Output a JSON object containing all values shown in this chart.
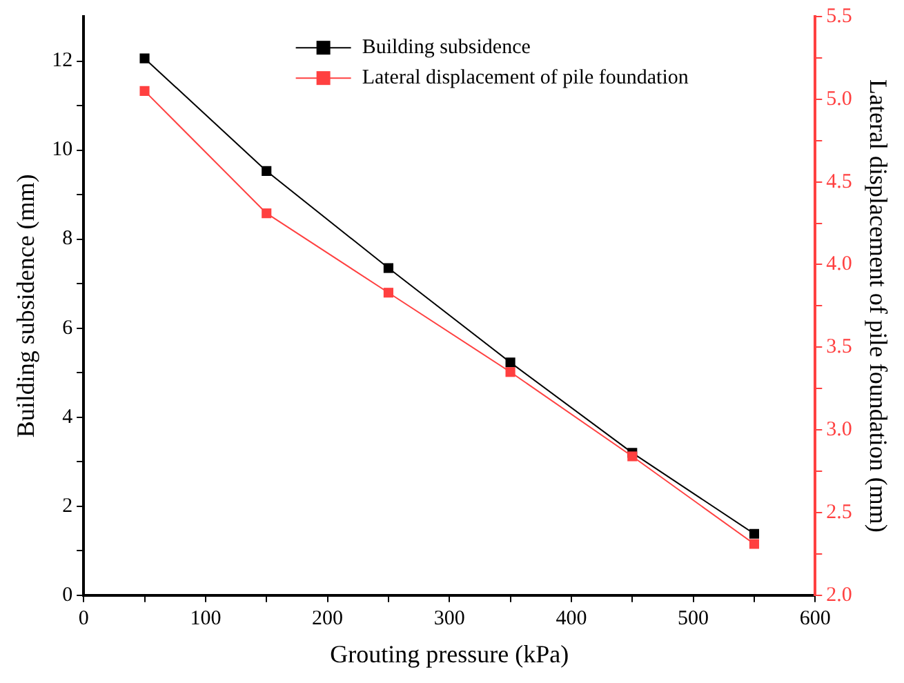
{
  "chart_data": {
    "type": "line",
    "xlabel": "Grouting pressure (kPa)",
    "ylabel": "Building subsidence (mm)",
    "y2label": "Lateral displacement of pile foundation (mm)",
    "x": [
      50,
      150,
      250,
      350,
      450,
      550
    ],
    "series": [
      {
        "name": "Building subsidence",
        "color": "#000000",
        "values": [
          12.06,
          9.53,
          7.35,
          5.23,
          3.2,
          1.38
        ]
      },
      {
        "name": "Lateral displacement of pile foundation",
        "color": "#ff4040",
        "axis": "y2",
        "values": [
          5.05,
          4.31,
          3.83,
          3.35,
          2.84,
          2.31
        ]
      }
    ],
    "xlim": [
      0,
      600
    ],
    "xticks": [
      0,
      {
        "value": 50,
        "label": null
      },
      100,
      {
        "value": 150,
        "label": null
      },
      200,
      {
        "value": 250,
        "label": null
      },
      300,
      {
        "value": 350,
        "label": null
      },
      400,
      {
        "value": 450,
        "label": null
      },
      500,
      {
        "value": 550,
        "label": null
      },
      600
    ],
    "ylim": [
      0,
      13
    ],
    "yticks": [
      0,
      {
        "value": 1,
        "label": null
      },
      2,
      {
        "value": 3,
        "label": null
      },
      4,
      {
        "value": 5,
        "label": null
      },
      6,
      {
        "value": 7,
        "label": null
      },
      8,
      {
        "value": 9,
        "label": null
      },
      10,
      {
        "value": 11,
        "label": null
      },
      12
    ],
    "y2lim": [
      2,
      5.5
    ],
    "y2ticks": [
      {
        "value": 2,
        "label": "2.0"
      },
      {
        "value": 2.25,
        "label": null
      },
      2.5,
      {
        "value": 2.75,
        "label": null
      },
      {
        "value": 3,
        "label": "3.0"
      },
      {
        "value": 3.25,
        "label": null
      },
      3.5,
      {
        "value": 3.75,
        "label": null
      },
      {
        "value": 4,
        "label": "4.0"
      },
      {
        "value": 4.25,
        "label": null
      },
      4.5,
      {
        "value": 4.75,
        "label": null
      },
      {
        "value": 5,
        "label": "5.0"
      },
      {
        "value": 5.25,
        "label": null
      },
      5.5
    ],
    "grid": false,
    "legend": "top",
    "marker": "square",
    "line_style": "solid"
  }
}
